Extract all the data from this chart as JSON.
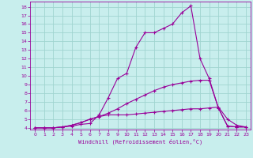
{
  "bg_color": "#c8eeed",
  "grid_color": "#a0d4d0",
  "line_color": "#990099",
  "xlabel": "Windchill (Refroidissement éolien,°C)",
  "x_ticks": [
    0,
    1,
    2,
    3,
    4,
    5,
    6,
    7,
    8,
    9,
    10,
    11,
    12,
    13,
    14,
    15,
    16,
    17,
    18,
    19,
    20,
    21,
    22,
    23
  ],
  "y_ticks": [
    4,
    5,
    6,
    7,
    8,
    9,
    10,
    11,
    12,
    13,
    14,
    15,
    16,
    17,
    18
  ],
  "ylim": [
    3.8,
    18.6
  ],
  "xlim": [
    -0.5,
    23.5
  ],
  "line1_x": [
    0,
    1,
    2,
    3,
    4,
    5,
    6,
    7,
    8,
    9,
    10,
    11,
    12,
    13,
    14,
    15,
    16,
    17,
    18,
    19,
    20,
    21,
    22,
    23
  ],
  "line1_y": [
    4,
    4,
    4,
    4.1,
    4.2,
    4.4,
    4.5,
    5.5,
    7.5,
    9.7,
    10.3,
    13.3,
    15.0,
    15.0,
    15.5,
    16.0,
    17.3,
    18.1,
    12.0,
    9.7,
    6.3,
    4.2,
    4.1,
    4.1
  ],
  "line2_x": [
    0,
    1,
    2,
    3,
    4,
    5,
    6,
    7,
    8,
    9,
    10,
    11,
    12,
    13,
    14,
    15,
    16,
    17,
    18,
    19,
    20,
    21,
    22,
    23
  ],
  "line2_y": [
    4,
    4,
    4,
    4.1,
    4.3,
    4.6,
    5.0,
    5.3,
    5.7,
    6.2,
    6.8,
    7.3,
    7.8,
    8.3,
    8.7,
    9.0,
    9.2,
    9.4,
    9.5,
    9.5,
    6.3,
    4.2,
    4.1,
    4.1
  ],
  "line3_x": [
    0,
    1,
    2,
    3,
    4,
    5,
    6,
    7,
    8,
    9,
    10,
    11,
    12,
    13,
    14,
    15,
    16,
    17,
    18,
    19,
    20,
    21,
    22,
    23
  ],
  "line3_y": [
    4,
    4,
    4,
    4.1,
    4.3,
    4.6,
    5.0,
    5.3,
    5.5,
    5.5,
    5.5,
    5.6,
    5.7,
    5.8,
    5.9,
    6.0,
    6.1,
    6.2,
    6.2,
    6.3,
    6.4,
    5.0,
    4.3,
    4.1
  ]
}
